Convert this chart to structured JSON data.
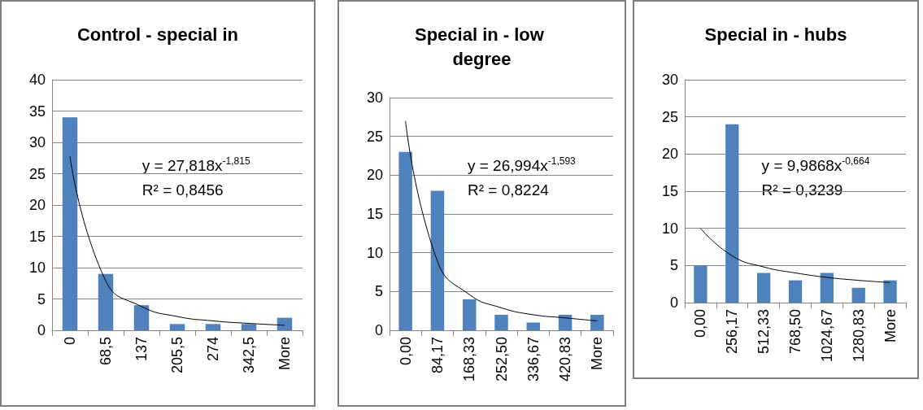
{
  "chart_data": [
    {
      "type": "bar",
      "title": "Control - special in",
      "categories": [
        "0",
        "68,5",
        "137",
        "205,5",
        "274",
        "342,5",
        "More"
      ],
      "series": [
        {
          "color": "#4f81bd",
          "values": [
            34,
            9,
            4,
            1,
            1,
            1,
            2
          ]
        },
        {
          "type": "line",
          "color": "#000000",
          "x": [
            "0",
            "68,5",
            "137",
            "205,5",
            "274",
            "342,5",
            "More"
          ],
          "values": [
            27.8,
            7.9,
            3.8,
            2.2,
            1.5,
            1.1,
            0.8
          ]
        }
      ],
      "ylim": [
        0,
        40
      ],
      "yticks": [
        0,
        5,
        10,
        15,
        20,
        25,
        30,
        35,
        40
      ],
      "grid": "y",
      "annotations": [
        "y = 27,818x$^{-1,815}$",
        "R² = 0,8456"
      ]
    },
    {
      "type": "bar",
      "title": "Special in - low degree",
      "categories": [
        "0,00",
        "84,17",
        "168,33",
        "252,50",
        "336,67",
        "420,83",
        "More"
      ],
      "series": [
        {
          "color": "#4f81bd",
          "values": [
            23,
            18,
            4,
            2,
            1,
            2,
            2
          ]
        },
        {
          "type": "line",
          "color": "#000000",
          "x": [
            "0,00",
            "84,17",
            "168,33",
            "252,50",
            "336,67",
            "420,83",
            "More"
          ],
          "values": [
            27.0,
            8.9,
            4.6,
            2.9,
            2.0,
            1.6,
            1.2
          ]
        }
      ],
      "ylim": [
        0,
        30
      ],
      "yticks": [
        0,
        5,
        10,
        15,
        20,
        25,
        30
      ],
      "grid": "y",
      "annotations": [
        "y = 26,994x$^{-1,593}$",
        "R² = 0,8224"
      ]
    },
    {
      "type": "bar",
      "title": "Special in - hubs",
      "categories": [
        "0,00",
        "256,17",
        "512,33",
        "768,50",
        "1024,67",
        "1280,83",
        "More"
      ],
      "series": [
        {
          "color": "#4f81bd",
          "values": [
            5,
            24,
            4,
            3,
            4,
            2,
            3
          ]
        },
        {
          "type": "line",
          "color": "#000000",
          "x": [
            "0,00",
            "256,17",
            "512,33",
            "768,50",
            "1024,67",
            "1280,83",
            "More"
          ],
          "values": [
            10.0,
            6.3,
            4.8,
            4.0,
            3.4,
            3.0,
            2.7
          ]
        }
      ],
      "ylim": [
        0,
        30
      ],
      "yticks": [
        0,
        5,
        10,
        15,
        20,
        25,
        30
      ],
      "grid": "y",
      "annotations": [
        "y = 9,9868x$^{-0,664}$",
        "R² = 0,3239"
      ]
    }
  ]
}
